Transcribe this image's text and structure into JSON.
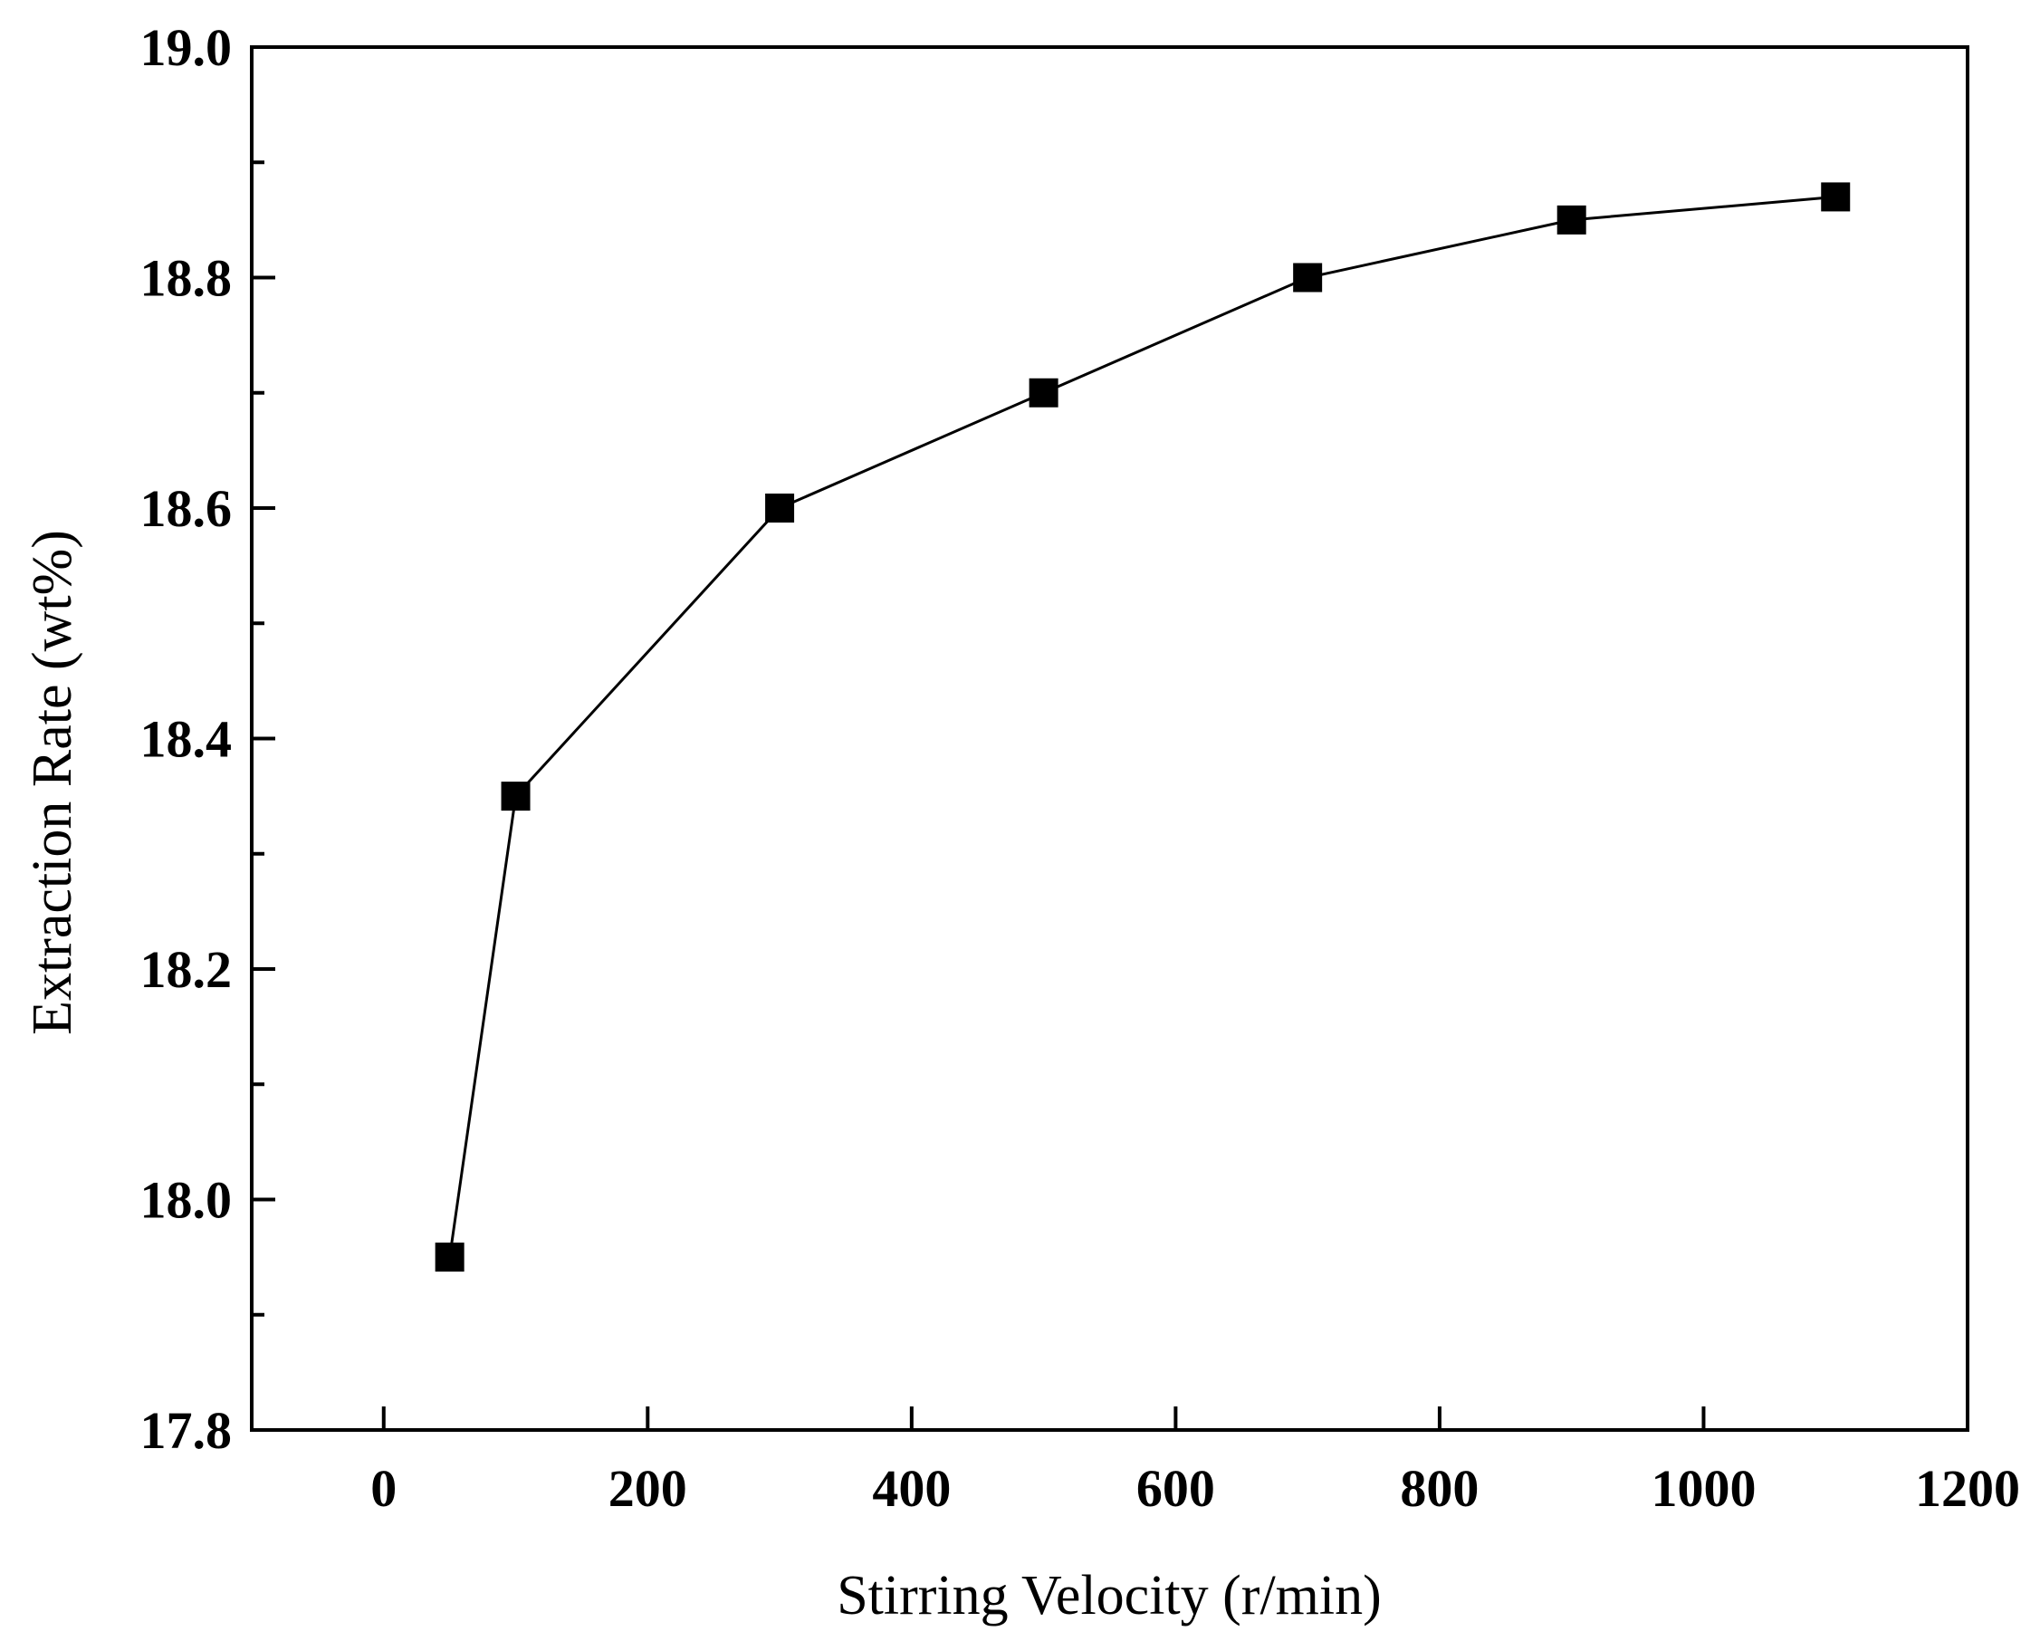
{
  "chart_data": {
    "type": "line",
    "title": "",
    "xlabel": "Stirring Velocity (r/min)",
    "ylabel": "Extraction Rate (wt%)",
    "xlim": [
      -100,
      1200
    ],
    "ylim": [
      17.8,
      19.0
    ],
    "x_ticks": [
      0,
      200,
      400,
      600,
      800,
      1000,
      1200
    ],
    "x_tick_labels": [
      "0",
      "200",
      "400",
      "600",
      "800",
      "1000",
      "1200"
    ],
    "y_ticks": [
      17.8,
      18.0,
      18.2,
      18.4,
      18.6,
      18.8,
      19.0
    ],
    "y_tick_labels": [
      "17.8",
      "18.0",
      "18.2",
      "18.4",
      "18.6",
      "18.8",
      "19.0"
    ],
    "y_minor_ticks": [
      17.9,
      18.1,
      18.3,
      18.5,
      18.7,
      18.9
    ],
    "grid": false,
    "marker": "square",
    "series": [
      {
        "name": "Extraction Rate",
        "x": [
          50,
          100,
          300,
          500,
          700,
          900,
          1100
        ],
        "values": [
          17.95,
          18.35,
          18.6,
          18.7,
          18.8,
          18.85,
          18.87
        ]
      }
    ],
    "colors": {
      "line": "#000000",
      "marker": "#000000",
      "axis": "#000000"
    }
  }
}
